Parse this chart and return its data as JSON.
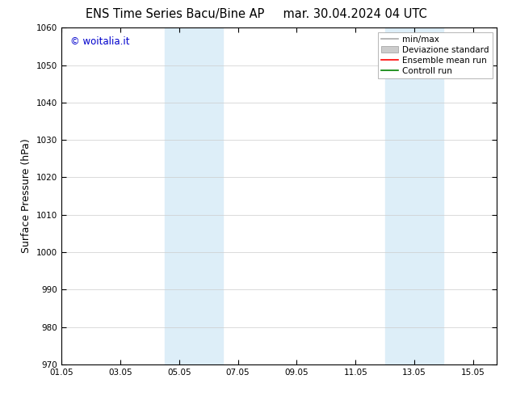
{
  "title": "ENS Time Series Bacu/Bine AP",
  "title_right": "mar. 30.04.2024 04 UTC",
  "ylabel": "Surface Pressure (hPa)",
  "ylim": [
    970,
    1060
  ],
  "yticks": [
    970,
    980,
    990,
    1000,
    1010,
    1020,
    1030,
    1040,
    1050,
    1060
  ],
  "xtick_labels": [
    "01.05",
    "03.05",
    "05.05",
    "07.05",
    "09.05",
    "11.05",
    "13.05",
    "15.05"
  ],
  "xtick_positions": [
    0,
    2,
    4,
    6,
    8,
    10,
    12,
    14
  ],
  "xlim": [
    0,
    14.8
  ],
  "shaded_bands": [
    {
      "xstart": 3.5,
      "xend": 5.5,
      "color": "#ddeef8",
      "alpha": 1.0
    },
    {
      "xstart": 11.0,
      "xend": 13.0,
      "color": "#ddeef8",
      "alpha": 1.0
    }
  ],
  "watermark": "© woitalia.it",
  "watermark_color": "#0000cc",
  "legend_items": [
    {
      "label": "min/max",
      "color": "#aaaaaa",
      "lw": 1.2,
      "type": "line"
    },
    {
      "label": "Deviazione standard",
      "color": "#cccccc",
      "lw": 6,
      "type": "band"
    },
    {
      "label": "Ensemble mean run",
      "color": "red",
      "lw": 1.2,
      "type": "line"
    },
    {
      "label": "Controll run",
      "color": "green",
      "lw": 1.2,
      "type": "line"
    }
  ],
  "bg_color": "white",
  "grid_color": "#cccccc",
  "tick_fontsize": 7.5,
  "label_fontsize": 9,
  "title_fontsize": 10.5,
  "legend_fontsize": 7.5
}
